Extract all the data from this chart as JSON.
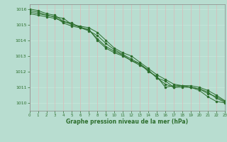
{
  "title": "Graphe pression niveau de la mer (hPa)",
  "background_color": "#b8ddd0",
  "grid_color_h": "#c8e8dc",
  "grid_color_v": "#ddb8b8",
  "line_color": "#2d6e2d",
  "axis_color": "#888888",
  "xlim": [
    0,
    23
  ],
  "ylim": [
    1009.5,
    1016.3
  ],
  "yticks": [
    1010,
    1011,
    1012,
    1013,
    1014,
    1015,
    1016
  ],
  "xticks": [
    0,
    1,
    2,
    3,
    4,
    5,
    6,
    7,
    8,
    9,
    10,
    11,
    12,
    13,
    14,
    15,
    16,
    17,
    18,
    19,
    20,
    21,
    22,
    23
  ],
  "series": [
    [
      1015.7,
      1015.6,
      1015.5,
      1015.4,
      1015.2,
      1015.1,
      1014.8,
      1014.7,
      1014.0,
      1013.5,
      1013.2,
      1013.0,
      1012.7,
      1012.5,
      1012.0,
      1011.7,
      1011.0,
      1011.1,
      1011.1,
      1011.0,
      1010.9,
      1010.6,
      1010.4,
      1010.1
    ],
    [
      1015.8,
      1015.7,
      1015.6,
      1015.5,
      1015.4,
      1015.0,
      1014.9,
      1014.8,
      1014.5,
      1014.0,
      1013.5,
      1013.2,
      1013.0,
      1012.6,
      1012.2,
      1011.8,
      1011.5,
      1011.2,
      1011.1,
      1011.0,
      1010.8,
      1010.4,
      1010.1,
      1010.0
    ],
    [
      1015.9,
      1015.8,
      1015.6,
      1015.5,
      1015.1,
      1014.9,
      1014.8,
      1014.6,
      1014.3,
      1013.8,
      1013.4,
      1013.1,
      1012.8,
      1012.5,
      1012.1,
      1011.6,
      1011.4,
      1011.0,
      1011.1,
      1011.1,
      1011.0,
      1010.8,
      1010.5,
      1010.15
    ],
    [
      1016.0,
      1015.9,
      1015.7,
      1015.6,
      1015.2,
      1015.0,
      1014.85,
      1014.65,
      1014.1,
      1013.6,
      1013.3,
      1013.05,
      1012.7,
      1012.4,
      1012.1,
      1011.6,
      1011.2,
      1011.0,
      1011.0,
      1011.0,
      1010.9,
      1010.7,
      1010.3,
      1010.05
    ]
  ]
}
